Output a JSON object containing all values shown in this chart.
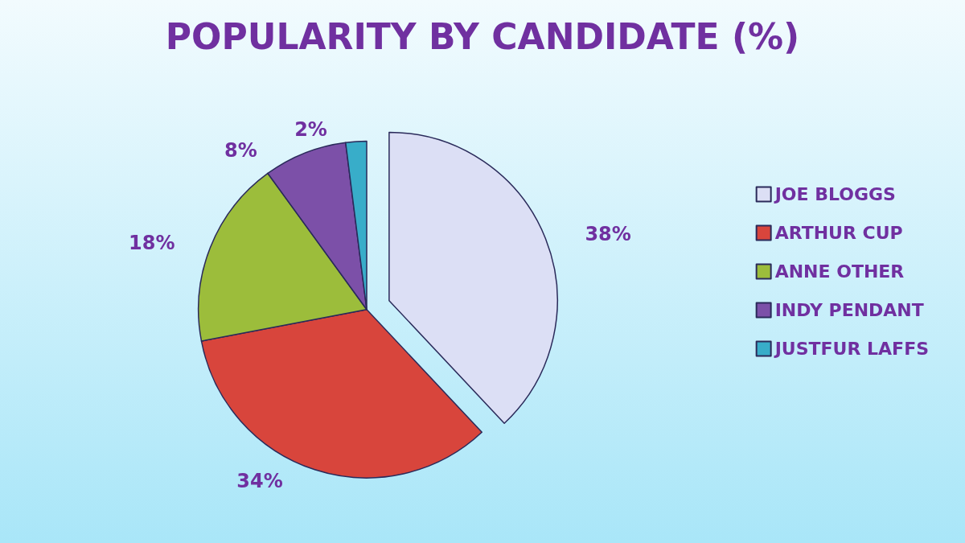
{
  "chart_data": {
    "type": "pie",
    "title": "POPULARITY BY CANDIDATE (%)",
    "categories": [
      "JOE BLOGGS",
      "ARTHUR CUP",
      "ANNE OTHER",
      "INDY PENDANT",
      "JUSTFUR LAFFS"
    ],
    "values": [
      38,
      34,
      18,
      8,
      2
    ],
    "value_labels": [
      "38%",
      "34%",
      "18%",
      "8%",
      "2%"
    ],
    "colors": [
      "#dcdff5",
      "#d8453c",
      "#9cbd3b",
      "#7c50a8",
      "#38adc9"
    ],
    "legend": "right"
  }
}
